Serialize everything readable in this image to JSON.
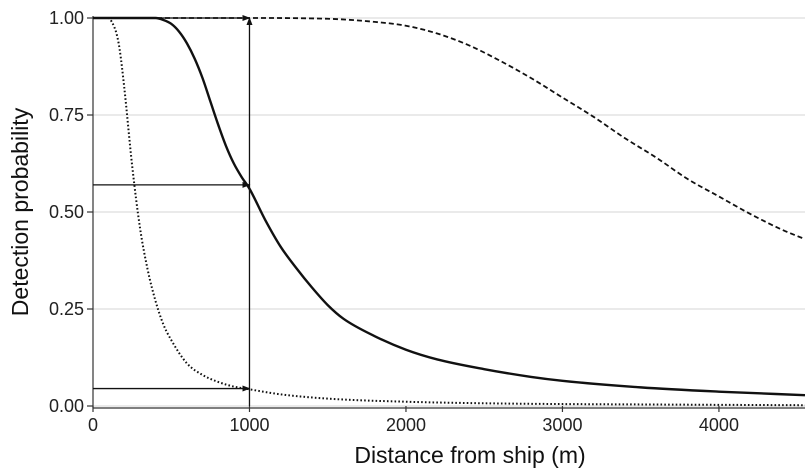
{
  "chart_data": {
    "type": "line",
    "title": "",
    "xlabel": "Distance from ship (m)",
    "ylabel": "Detection probability",
    "xlim": [
      0,
      4550
    ],
    "ylim": [
      0,
      1.0
    ],
    "x_ticks": [
      0,
      1000,
      2000,
      3000,
      4000
    ],
    "y_ticks": [
      0.0,
      0.25,
      0.5,
      0.75,
      1.0
    ],
    "x_tick_labels": [
      "0",
      "1000",
      "2000",
      "3000",
      "4000"
    ],
    "y_tick_labels": [
      "0.00",
      "0.25",
      "0.50",
      "0.75",
      "1.00"
    ],
    "grid": "horizontal",
    "legend": "none",
    "series": [
      {
        "style": "dotted",
        "x": [
          0,
          100,
          120,
          150,
          170,
          200,
          250,
          300,
          350,
          400,
          450,
          500,
          600,
          700,
          800,
          900,
          1000,
          1200,
          1500,
          2000,
          2500,
          3000,
          3500,
          4000,
          4550
        ],
        "y": [
          1.0,
          1.0,
          0.99,
          0.96,
          0.92,
          0.82,
          0.62,
          0.46,
          0.35,
          0.27,
          0.21,
          0.17,
          0.11,
          0.08,
          0.062,
          0.05,
          0.043,
          0.03,
          0.019,
          0.011,
          0.007,
          0.005,
          0.004,
          0.003,
          0.002
        ]
      },
      {
        "style": "solid",
        "x": [
          0,
          400,
          450,
          500,
          550,
          600,
          650,
          700,
          750,
          800,
          850,
          900,
          950,
          1000,
          1100,
          1200,
          1300,
          1400,
          1500,
          1600,
          1800,
          2000,
          2200,
          2500,
          2800,
          3000,
          3500,
          4000,
          4550
        ],
        "y": [
          1.0,
          1.0,
          0.995,
          0.985,
          0.965,
          0.935,
          0.895,
          0.845,
          0.785,
          0.725,
          0.67,
          0.625,
          0.59,
          0.56,
          0.48,
          0.41,
          0.355,
          0.305,
          0.26,
          0.225,
          0.18,
          0.145,
          0.12,
          0.095,
          0.075,
          0.065,
          0.048,
          0.037,
          0.028
        ]
      },
      {
        "style": "dashed",
        "x": [
          0,
          1000,
          1500,
          1800,
          2000,
          2200,
          2400,
          2600,
          2800,
          3000,
          3200,
          3400,
          3600,
          3800,
          4000,
          4200,
          4400,
          4550
        ],
        "y": [
          1.0,
          1.0,
          0.998,
          0.99,
          0.98,
          0.96,
          0.93,
          0.89,
          0.845,
          0.795,
          0.745,
          0.69,
          0.64,
          0.585,
          0.54,
          0.495,
          0.455,
          0.43
        ]
      }
    ],
    "annotations": [
      {
        "type": "arrow",
        "from": [
          1000,
          0.0
        ],
        "to": [
          1000,
          1.0
        ]
      },
      {
        "type": "arrow",
        "from": [
          0,
          1.0
        ],
        "to": [
          1000,
          1.0
        ]
      },
      {
        "type": "arrow",
        "from": [
          0,
          0.57
        ],
        "to": [
          1000,
          0.57
        ]
      },
      {
        "type": "arrow",
        "from": [
          0,
          0.045
        ],
        "to": [
          1000,
          0.045
        ]
      }
    ]
  }
}
